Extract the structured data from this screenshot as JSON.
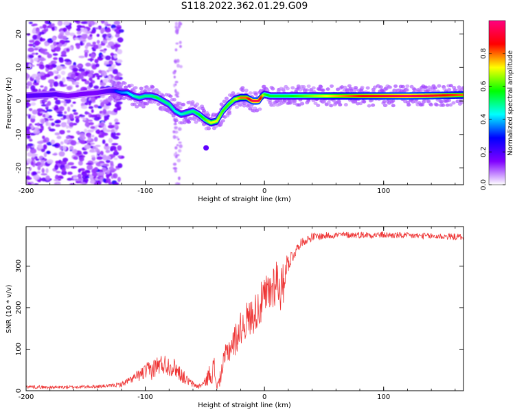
{
  "title": "S118.2022.362.01.29.G09",
  "chart_data": [
    {
      "type": "heatmap",
      "xlabel": "Height of straight line (km)",
      "ylabel": "Frequency (Hz)",
      "xlim": [
        -200,
        167
      ],
      "ylim": [
        -25,
        24
      ],
      "xticks": [
        -200,
        -100,
        0,
        100
      ],
      "yticks": [
        -20,
        -10,
        0,
        10,
        20
      ],
      "xtick_labels": [
        "-200",
        "-100",
        "0",
        "100"
      ],
      "ytick_labels": [
        "-20",
        "-10",
        "0",
        "10",
        "20"
      ],
      "colorbar": {
        "label": "Normalized spectral amplitude",
        "range": [
          0,
          1
        ],
        "ticks": [
          0.0,
          0.2,
          0.4,
          0.6,
          0.8
        ],
        "tick_labels": [
          "0.0",
          "0.2",
          "0.4",
          "0.6",
          "0.8"
        ],
        "colors": [
          "#ffffff",
          "#8000ff",
          "#0000ff",
          "#00ffff",
          "#00ff00",
          "#ffff00",
          "#ff0000",
          "#ff0080"
        ]
      },
      "ridge": {
        "x": [
          -200,
          -185,
          -175,
          -165,
          -155,
          -140,
          -130,
          -125,
          -120,
          -115,
          -110,
          -105,
          -100,
          -95,
          -90,
          -85,
          -80,
          -75,
          -70,
          -65,
          -60,
          -55,
          -50,
          -45,
          -40,
          -35,
          -30,
          -25,
          -20,
          -15,
          -10,
          -5,
          -2,
          0,
          5,
          20,
          50,
          80,
          100,
          120,
          140,
          167
        ],
        "y": [
          1.5,
          1.8,
          2,
          1.5,
          2,
          2.5,
          3,
          3,
          2.5,
          2.5,
          1.5,
          1,
          1.5,
          1.5,
          1,
          0,
          -1,
          -3,
          -4,
          -3.5,
          -3,
          -4,
          -5.5,
          -6.5,
          -6,
          -3,
          -1,
          0.5,
          1,
          1,
          0,
          0,
          1.5,
          2,
          1.5,
          1.5,
          1.5,
          1.5,
          1.5,
          1.5,
          1.6,
          1.8
        ],
        "amplitude": [
          0.25,
          0.25,
          0.25,
          0.2,
          0.2,
          0.2,
          0.25,
          0.3,
          0.35,
          0.4,
          0.45,
          0.5,
          0.5,
          0.5,
          0.55,
          0.5,
          0.5,
          0.45,
          0.45,
          0.5,
          0.5,
          0.55,
          0.6,
          0.7,
          0.7,
          0.6,
          0.6,
          0.65,
          0.8,
          0.8,
          0.95,
          0.95,
          0.8,
          0.6,
          0.55,
          0.55,
          0.7,
          0.85,
          0.9,
          0.95,
          0.9,
          0.8
        ]
      },
      "scatter_cloud": {
        "x_range": [
          -200,
          -120
        ],
        "y_range": [
          -25,
          24
        ],
        "amplitude": 0.15
      }
    },
    {
      "type": "line",
      "xlabel": "Height of straight line (km)",
      "ylabel": "SNR (10 * v/v)",
      "xlim": [
        -200,
        167
      ],
      "ylim": [
        0,
        395
      ],
      "xticks": [
        -200,
        -100,
        0,
        100
      ],
      "yticks": [
        0,
        100,
        200,
        300
      ],
      "xtick_labels": [
        "-200",
        "-100",
        "0",
        "100"
      ],
      "ytick_labels": [
        "0",
        "100",
        "200",
        "300"
      ],
      "line_color": "#ee3333",
      "series": [
        {
          "x": [
            -200,
            -180,
            -160,
            -140,
            -130,
            -120,
            -110,
            -100,
            -95,
            -90,
            -85,
            -80,
            -75,
            -70,
            -65,
            -60,
            -55,
            -50,
            -45,
            -42,
            -40,
            -38,
            -35,
            -32,
            -30,
            -25,
            -20,
            -15,
            -10,
            -5,
            0,
            5,
            10,
            15,
            18,
            20,
            25,
            30,
            40,
            60,
            80,
            100,
            120,
            140,
            167
          ],
          "values": [
            10,
            8,
            9,
            10,
            12,
            15,
            30,
            45,
            50,
            60,
            65,
            60,
            55,
            40,
            25,
            15,
            10,
            20,
            45,
            50,
            10,
            20,
            60,
            90,
            100,
            120,
            150,
            170,
            180,
            200,
            220,
            240,
            270,
            240,
            300,
            310,
            330,
            355,
            370,
            375,
            375,
            375,
            373,
            372,
            370
          ],
          "noise": [
            4,
            4,
            4,
            4,
            4,
            6,
            10,
            20,
            25,
            25,
            25,
            25,
            22,
            20,
            12,
            8,
            6,
            10,
            30,
            35,
            8,
            15,
            25,
            30,
            35,
            40,
            40,
            45,
            45,
            50,
            55,
            60,
            60,
            60,
            30,
            25,
            15,
            10,
            10,
            8,
            8,
            8,
            8,
            8,
            8
          ]
        }
      ]
    }
  ]
}
